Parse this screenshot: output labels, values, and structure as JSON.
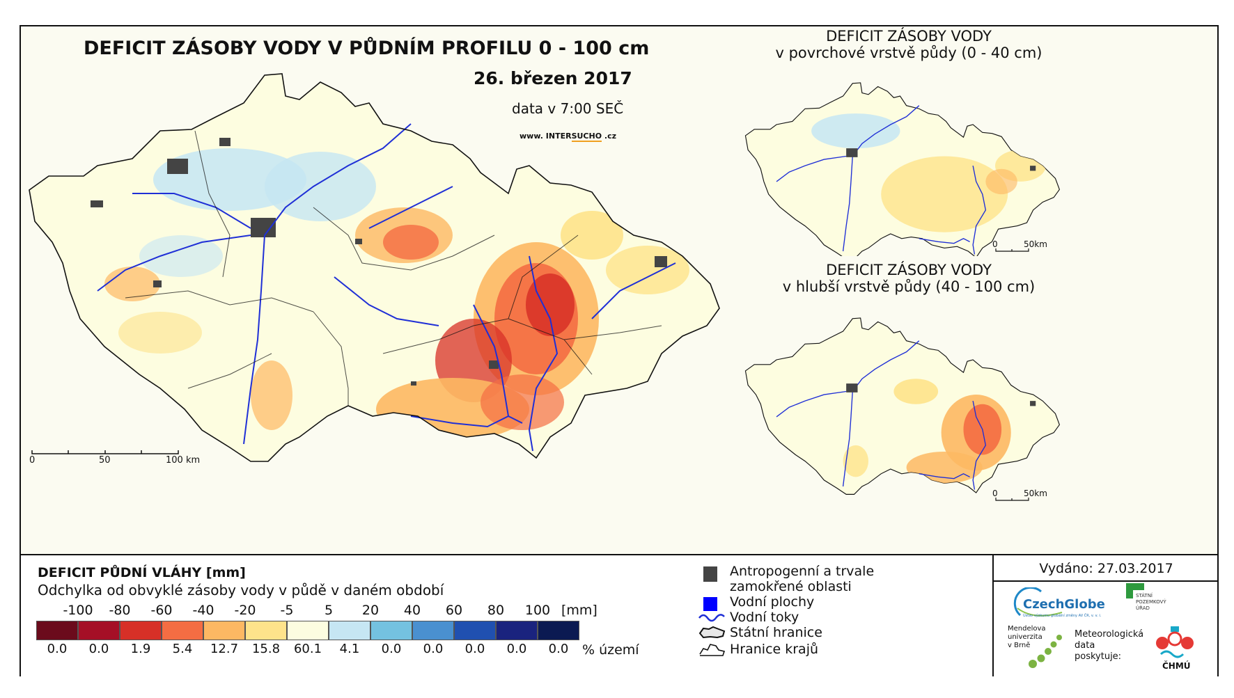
{
  "main_title": "DEFICIT ZÁSOBY VODY V PŮDNÍM PROFILU 0 - 100 cm",
  "date": "26. březen 2017",
  "data_time": "data v 7:00 SEČ",
  "website": {
    "prefix": "www. INTER",
    "highlight": "SUCHO",
    "suffix": " .cz"
  },
  "main_scalebar": {
    "ticks": [
      "0",
      "50",
      "100 km"
    ]
  },
  "inset_top": {
    "title_line1": "DEFICIT ZÁSOBY VODY",
    "title_line2": "v povrchové vrstvě půdy (0 - 40 cm)",
    "scalebar": [
      "0",
      "50km"
    ]
  },
  "inset_bottom": {
    "title_line1": "DEFICIT ZÁSOBY VODY",
    "title_line2": "v hlubší vrstvě půdy (40 - 100 cm)",
    "scalebar": [
      "0",
      "50km"
    ]
  },
  "legend": {
    "title": "DEFICIT PŮDNÍ VLÁHY [mm]",
    "subtitle": "Odchylka od obvyklé zásoby vody v půdě v daném období",
    "unit": "[mm]",
    "percent_label": "% území",
    "thresholds": [
      "-100",
      "-80",
      "-60",
      "-40",
      "-20",
      "-5",
      "5",
      "20",
      "40",
      "60",
      "80",
      "100"
    ],
    "classes": [
      {
        "color": "#6b0b1c",
        "percent": "0.0"
      },
      {
        "color": "#a50f26",
        "percent": "0.0"
      },
      {
        "color": "#d73027",
        "percent": "1.9"
      },
      {
        "color": "#f46d43",
        "percent": "5.4"
      },
      {
        "color": "#fdb863",
        "percent": "12.7"
      },
      {
        "color": "#fee38b",
        "percent": "15.8"
      },
      {
        "color": "#fdfde0",
        "percent": "60.1"
      },
      {
        "color": "#c6e6f3",
        "percent": "4.1"
      },
      {
        "color": "#74c2e0",
        "percent": "0.0"
      },
      {
        "color": "#4a90d0",
        "percent": "0.0"
      },
      {
        "color": "#2050b0",
        "percent": "0.0"
      },
      {
        "color": "#1a237e",
        "percent": "0.0"
      },
      {
        "color": "#0b1a52",
        "percent": "0.0"
      }
    ]
  },
  "symbols": [
    {
      "icon": "urban-area-square",
      "label_line1": "Antropogenní a trvale",
      "label_line2": "zamokřené oblasti"
    },
    {
      "icon": "water-body-square",
      "label_line1": "Vodní plochy",
      "label_line2": ""
    },
    {
      "icon": "river-line",
      "label_line1": "Vodní toky",
      "label_line2": ""
    },
    {
      "icon": "state-border-outline",
      "label_line1": "Státní hranice",
      "label_line2": ""
    },
    {
      "icon": "region-border-outline",
      "label_line1": "Hranice krajů",
      "label_line2": ""
    }
  ],
  "issued": "Vydáno: 27.03.2017",
  "logos": {
    "czechglobe": "CzechGlobe",
    "czechglobe_sub": "Ústav výzkumu globální změny AV ČR, v. v. i.",
    "spu_line1": "STÁTNÍ",
    "spu_line2": "POZEMKOVÝ",
    "spu_line3": "ÚŘAD",
    "mendel_line1": "Mendelova",
    "mendel_line2": "univerzita",
    "mendel_line3": "v Brně",
    "provider_line1": "Meteorologická",
    "provider_line2": "data",
    "provider_line3": "poskytuje:",
    "chmu": "ČHMÚ"
  },
  "colors": {
    "river": "#1f2fd6",
    "urban": "#444444",
    "water": "#0000ff",
    "border": "#111111",
    "map_bg": "#fbfbf1"
  }
}
